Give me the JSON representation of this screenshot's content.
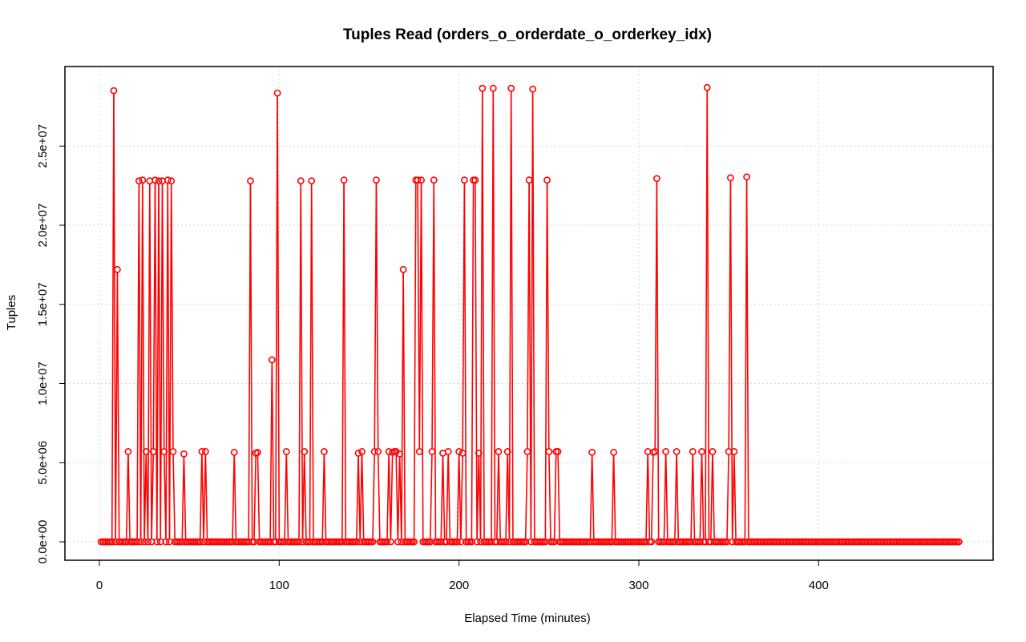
{
  "chart_data": {
    "type": "line",
    "title": "Tuples Read (orders_o_orderdate_o_orderkey_idx)",
    "xlabel": "Elapsed Time (minutes)",
    "ylabel": "Tuples",
    "xlim": [
      0,
      478
    ],
    "ylim": [
      0,
      28700000
    ],
    "x_ticks": [
      0,
      100,
      200,
      300,
      400
    ],
    "x_tick_labels": [
      "0",
      "100",
      "200",
      "300",
      "400"
    ],
    "y_ticks": [
      0,
      5000000,
      10000000,
      15000000,
      20000000,
      25000000
    ],
    "y_tick_labels": [
      "0.0e+00",
      "5.0e+06",
      "1.0e+07",
      "1.5e+07",
      "2.0e+07",
      "2.5e+07"
    ],
    "grid": true,
    "series_color": "#ff0000",
    "series": [
      {
        "x_start": 1,
        "x_end": 478,
        "baseline": 0,
        "points": [
          [
            8,
            28500000
          ],
          [
            10,
            17200000
          ],
          [
            16,
            5700000
          ],
          [
            22,
            22800000
          ],
          [
            24,
            22850000
          ],
          [
            26,
            5700000
          ],
          [
            28,
            22800000
          ],
          [
            30,
            5700000
          ],
          [
            31,
            22850000
          ],
          [
            33,
            22800000
          ],
          [
            35,
            22800000
          ],
          [
            36,
            5700000
          ],
          [
            38,
            22850000
          ],
          [
            40,
            22800000
          ],
          [
            41,
            5700000
          ],
          [
            47,
            5550000
          ],
          [
            57,
            5700000
          ],
          [
            59,
            5700000
          ],
          [
            75,
            5650000
          ],
          [
            84,
            22800000
          ],
          [
            87,
            5600000
          ],
          [
            88,
            5650000
          ],
          [
            96,
            11500000
          ],
          [
            99,
            28350000
          ],
          [
            104,
            5700000
          ],
          [
            112,
            22800000
          ],
          [
            114,
            5700000
          ],
          [
            118,
            22800000
          ],
          [
            125,
            5700000
          ],
          [
            136,
            22850000
          ],
          [
            144,
            5600000
          ],
          [
            146,
            5700000
          ],
          [
            153,
            5700000
          ],
          [
            154,
            22850000
          ],
          [
            155,
            5700000
          ],
          [
            161,
            5700000
          ],
          [
            163,
            5650000
          ],
          [
            164,
            5700000
          ],
          [
            165,
            5700000
          ],
          [
            167,
            5550000
          ],
          [
            169,
            17200000
          ],
          [
            176,
            22850000
          ],
          [
            177,
            22850000
          ],
          [
            178,
            5700000
          ],
          [
            179,
            22850000
          ],
          [
            185,
            5700000
          ],
          [
            186,
            22850000
          ],
          [
            191,
            5600000
          ],
          [
            194,
            5700000
          ],
          [
            200,
            5700000
          ],
          [
            202,
            5600000
          ],
          [
            203,
            22850000
          ],
          [
            208,
            22850000
          ],
          [
            209,
            22850000
          ],
          [
            211,
            5600000
          ],
          [
            213,
            28650000
          ],
          [
            219,
            28650000
          ],
          [
            222,
            5700000
          ],
          [
            227,
            5700000
          ],
          [
            229,
            28650000
          ],
          [
            238,
            5700000
          ],
          [
            239,
            22850000
          ],
          [
            241,
            28600000
          ],
          [
            249,
            22850000
          ],
          [
            250,
            5700000
          ],
          [
            254,
            5700000
          ],
          [
            255,
            5700000
          ],
          [
            274,
            5650000
          ],
          [
            286,
            5650000
          ],
          [
            305,
            5700000
          ],
          [
            308,
            5650000
          ],
          [
            309,
            5700000
          ],
          [
            310,
            22950000
          ],
          [
            315,
            5700000
          ],
          [
            321,
            5700000
          ],
          [
            330,
            5700000
          ],
          [
            335,
            5700000
          ],
          [
            338,
            28700000
          ],
          [
            341,
            5700000
          ],
          [
            350,
            5700000
          ],
          [
            351,
            23000000
          ],
          [
            353,
            5700000
          ],
          [
            360,
            23050000
          ]
        ]
      }
    ]
  }
}
